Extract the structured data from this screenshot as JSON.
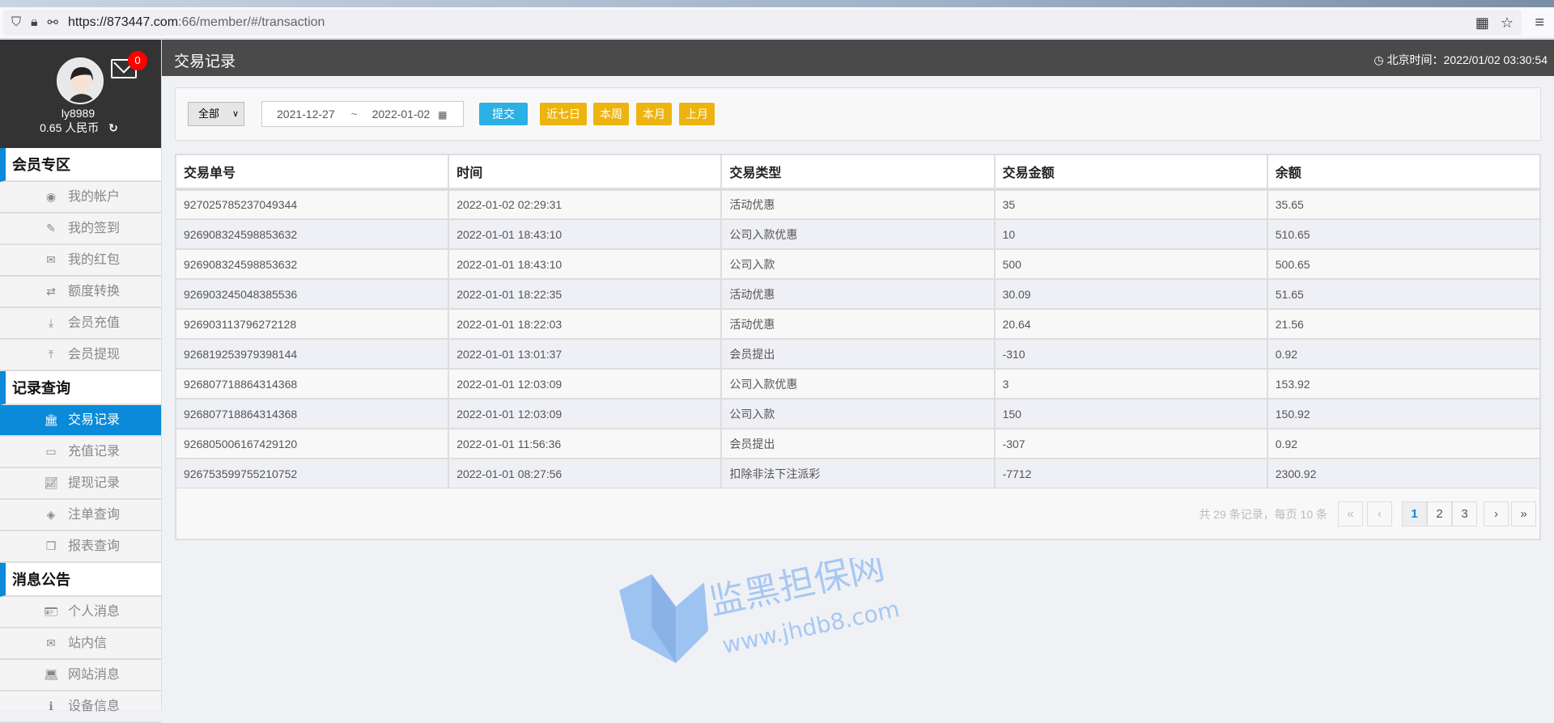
{
  "browser": {
    "url_host": "https://873447.com",
    "url_rest": ":66/member/#/transaction"
  },
  "user": {
    "name": "ly8989",
    "balance": "0.65 人民币",
    "mail_count": "0"
  },
  "header": {
    "title": "交易记录",
    "clock": "北京时间：2022/01/02 03:30:54"
  },
  "sidebar": {
    "sections": [
      {
        "title": "会员专区",
        "items": [
          {
            "label": "我的帐户",
            "icon": "user-circle-icon"
          },
          {
            "label": "我的签到",
            "icon": "pencil-icon"
          },
          {
            "label": "我的红包",
            "icon": "envelope-icon"
          },
          {
            "label": "额度转换",
            "icon": "exchange-icon"
          },
          {
            "label": "会员充值",
            "icon": "download-icon"
          },
          {
            "label": "会员提现",
            "icon": "upload-icon"
          }
        ]
      },
      {
        "title": "记录查询",
        "items": [
          {
            "label": "交易记录",
            "icon": "bank-icon",
            "active": true
          },
          {
            "label": "充值记录",
            "icon": "credit-card-icon"
          },
          {
            "label": "提现记录",
            "icon": "line-chart-icon"
          },
          {
            "label": "注单查询",
            "icon": "ticket-icon"
          },
          {
            "label": "报表查询",
            "icon": "copy-icon"
          }
        ]
      },
      {
        "title": "消息公告",
        "items": [
          {
            "label": "个人消息",
            "icon": "id-card-icon"
          },
          {
            "label": "站内信",
            "icon": "envelope-o-icon"
          },
          {
            "label": "网站消息",
            "icon": "laptop-icon"
          },
          {
            "label": "设备信息",
            "icon": "info-icon"
          }
        ]
      }
    ]
  },
  "filter": {
    "type": "全部",
    "start": "2021-12-27",
    "sep": "~",
    "end": "2022-01-02",
    "submit": "提交",
    "quick": [
      "近七日",
      "本周",
      "本月",
      "上月"
    ]
  },
  "table": {
    "headers": [
      "交易单号",
      "时间",
      "交易类型",
      "交易金额",
      "余额"
    ],
    "rows": [
      [
        "927025785237049344",
        "2022-01-02 02:29:31",
        "活动优惠",
        "35",
        "35.65"
      ],
      [
        "926908324598853632",
        "2022-01-01 18:43:10",
        "公司入款优惠",
        "10",
        "510.65"
      ],
      [
        "926908324598853632",
        "2022-01-01 18:43:10",
        "公司入款",
        "500",
        "500.65"
      ],
      [
        "926903245048385536",
        "2022-01-01 18:22:35",
        "活动优惠",
        "30.09",
        "51.65"
      ],
      [
        "926903113796272128",
        "2022-01-01 18:22:03",
        "活动优惠",
        "20.64",
        "21.56"
      ],
      [
        "926819253979398144",
        "2022-01-01 13:01:37",
        "会员提出",
        "-310",
        "0.92"
      ],
      [
        "926807718864314368",
        "2022-01-01 12:03:09",
        "公司入款优惠",
        "3",
        "153.92"
      ],
      [
        "926807718864314368",
        "2022-01-01 12:03:09",
        "公司入款",
        "150",
        "150.92"
      ],
      [
        "926805006167429120",
        "2022-01-01 11:56:36",
        "会员提出",
        "-307",
        "0.92"
      ],
      [
        "926753599755210752",
        "2022-01-01 08:27:56",
        "扣除非法下注派彩",
        "-7712",
        "2300.92"
      ]
    ]
  },
  "pagination": {
    "info": "共 29 条记录，每页 10 条",
    "first": "«",
    "prev": "‹",
    "pages": [
      "1",
      "2",
      "3"
    ],
    "current": "1",
    "next": "›",
    "last": "»"
  },
  "watermark": {
    "text": "监黑担保网",
    "url": "www.jhdb8.com"
  }
}
